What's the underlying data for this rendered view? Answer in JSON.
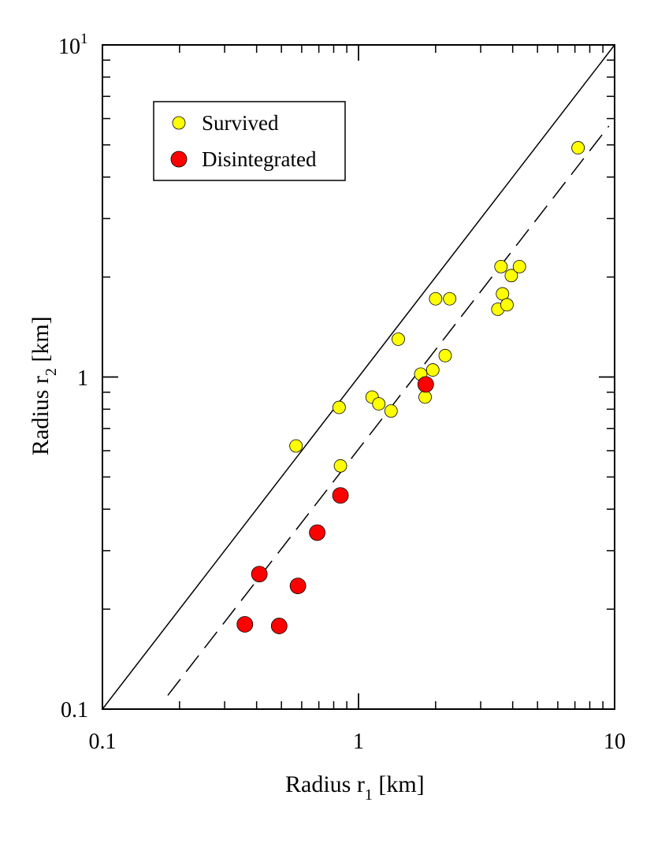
{
  "chart_data": {
    "type": "scatter",
    "x_scale": "log",
    "y_scale": "log",
    "xlim": [
      0.1,
      10
    ],
    "ylim": [
      0.1,
      10
    ],
    "xlabel": {
      "main": "Radius r",
      "sub": "1",
      "unit": " [km]"
    },
    "ylabel": {
      "main": "Radius r",
      "sub": "2",
      "unit": " [km]"
    },
    "x_tick_labels": [
      {
        "value": 0.1,
        "text": "0.1"
      },
      {
        "value": 1,
        "text": "1"
      },
      {
        "value": 10,
        "text": "10"
      }
    ],
    "y_tick_labels": [
      {
        "value": 0.1,
        "text": "0.1"
      },
      {
        "value": 1,
        "text": "1"
      },
      {
        "value": 10,
        "base": "10",
        "exp": "1"
      }
    ],
    "grid": false,
    "legend_position": "top-left",
    "series": [
      {
        "name": "Survived",
        "color": "#ffff00",
        "points": [
          [
            0.57,
            0.62
          ],
          [
            0.84,
            0.81
          ],
          [
            0.85,
            0.54
          ],
          [
            1.13,
            0.87
          ],
          [
            1.2,
            0.83
          ],
          [
            1.34,
            0.79
          ],
          [
            1.43,
            1.3
          ],
          [
            1.75,
            1.02
          ],
          [
            1.82,
            0.87
          ],
          [
            1.95,
            1.05
          ],
          [
            2.0,
            1.72
          ],
          [
            2.18,
            1.16
          ],
          [
            2.27,
            1.72
          ],
          [
            3.5,
            1.6
          ],
          [
            3.6,
            2.15
          ],
          [
            3.65,
            1.78
          ],
          [
            3.8,
            1.65
          ],
          [
            3.95,
            2.02
          ],
          [
            4.25,
            2.15
          ],
          [
            7.2,
            4.9
          ]
        ]
      },
      {
        "name": "Disintegrated",
        "color": "#ff0000",
        "points": [
          [
            0.36,
            0.18
          ],
          [
            0.41,
            0.255
          ],
          [
            0.49,
            0.178
          ],
          [
            0.58,
            0.235
          ],
          [
            0.69,
            0.34
          ],
          [
            0.85,
            0.44
          ],
          [
            1.83,
            0.95
          ]
        ]
      }
    ],
    "lines": [
      {
        "kind": "solid",
        "description": "r2 = r1",
        "x": [
          0.1,
          10
        ],
        "y": [
          0.1,
          10
        ]
      },
      {
        "kind": "dashed",
        "x": [
          0.18,
          9.5
        ],
        "y": [
          0.11,
          5.7
        ]
      }
    ]
  }
}
